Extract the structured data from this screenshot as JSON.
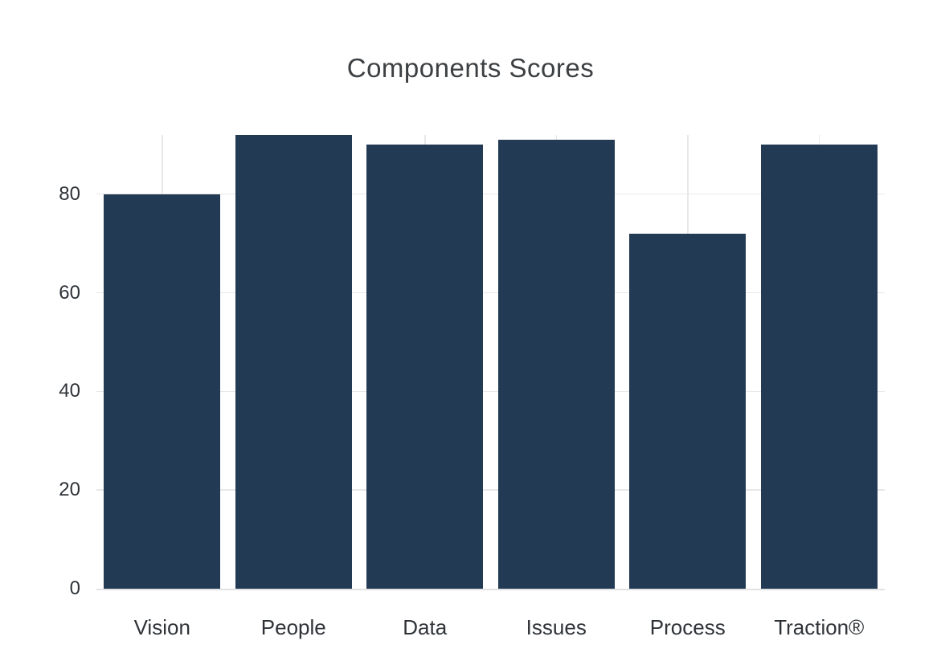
{
  "page": {
    "background": "#ffffff"
  },
  "chart_data": {
    "type": "bar",
    "title": "Components Scores",
    "categories": [
      "Vision",
      "People",
      "Data",
      "Issues",
      "Process",
      "Traction®"
    ],
    "values": [
      80,
      92,
      90,
      91,
      72,
      90
    ],
    "xlabel": "",
    "ylabel": "",
    "ylim": [
      0,
      92
    ],
    "yticks": [
      0,
      20,
      40,
      60,
      80
    ],
    "legend_position": "none",
    "grid": "light horizontal gridlines at y ticks and vertical gridlines at each category center",
    "colors": {
      "bar": "#223a54",
      "gridline": "#e8e8e8",
      "zero_line": "#e2e2e2",
      "title_text": "#3c4043",
      "tick_text": "#2f3338"
    }
  }
}
